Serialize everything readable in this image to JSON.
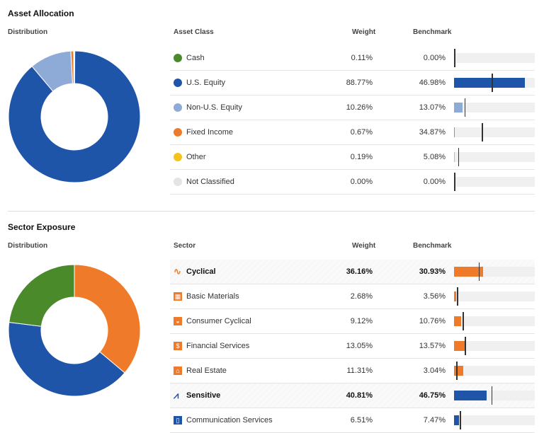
{
  "asset": {
    "title": "Asset Allocation",
    "distribution": "Distribution",
    "col_class": "Asset Class",
    "col_weight": "Weight",
    "col_benchmark": "Benchmark",
    "rows": [
      {
        "label": "Cash",
        "weight": "0.11%",
        "benchmark": "0.00%",
        "w": 0.11,
        "b": 0.0,
        "color": "#4a8a2a"
      },
      {
        "label": "U.S. Equity",
        "weight": "88.77%",
        "benchmark": "46.98%",
        "w": 88.77,
        "b": 46.98,
        "color": "#1f55a8"
      },
      {
        "label": "Non-U.S. Equity",
        "weight": "10.26%",
        "benchmark": "13.07%",
        "w": 10.26,
        "b": 13.07,
        "color": "#8eaad6"
      },
      {
        "label": "Fixed Income",
        "weight": "0.67%",
        "benchmark": "34.87%",
        "w": 0.67,
        "b": 34.87,
        "color": "#ef7b2a"
      },
      {
        "label": "Other",
        "weight": "0.19%",
        "benchmark": "5.08%",
        "w": 0.19,
        "b": 5.08,
        "color": "#f4c21b"
      },
      {
        "label": "Not Classified",
        "weight": "0.00%",
        "benchmark": "0.00%",
        "w": 0,
        "b": 0,
        "color": "#e4e4e4"
      }
    ]
  },
  "sector": {
    "title": "Sector Exposure",
    "distribution": "Distribution",
    "col_sector": "Sector",
    "col_weight": "Weight",
    "col_benchmark": "Benchmark",
    "rows": [
      {
        "label": "Cyclical",
        "weight": "36.16%",
        "benchmark": "30.93%",
        "w": 36.16,
        "b": 30.93,
        "color": "#ef7b2a",
        "bold": true,
        "icon": "cyclical-icon"
      },
      {
        "label": "Basic Materials",
        "weight": "2.68%",
        "benchmark": "3.56%",
        "w": 2.68,
        "b": 3.56,
        "color": "#ef7b2a",
        "icon": "basic-materials-icon"
      },
      {
        "label": "Consumer Cyclical",
        "weight": "9.12%",
        "benchmark": "10.76%",
        "w": 9.12,
        "b": 10.76,
        "color": "#ef7b2a",
        "icon": "car-icon"
      },
      {
        "label": "Financial Services",
        "weight": "13.05%",
        "benchmark": "13.57%",
        "w": 13.05,
        "b": 13.57,
        "color": "#ef7b2a",
        "icon": "financial-services-icon"
      },
      {
        "label": "Real Estate",
        "weight": "11.31%",
        "benchmark": "3.04%",
        "w": 11.31,
        "b": 3.04,
        "color": "#ef7b2a",
        "icon": "house-icon"
      },
      {
        "label": "Sensitive",
        "weight": "40.81%",
        "benchmark": "46.75%",
        "w": 40.81,
        "b": 46.75,
        "color": "#1f55a8",
        "bold": true,
        "icon": "sensitive-icon"
      },
      {
        "label": "Communication Services",
        "weight": "6.51%",
        "benchmark": "7.47%",
        "w": 6.51,
        "b": 7.47,
        "color": "#1f55a8",
        "icon": "communication-icon"
      }
    ],
    "donut": [
      {
        "value": 36.16,
        "color": "#ef7b2a"
      },
      {
        "value": 40.81,
        "color": "#1f55a8"
      },
      {
        "value": 23.03,
        "color": "#4a8a2a"
      }
    ]
  }
}
